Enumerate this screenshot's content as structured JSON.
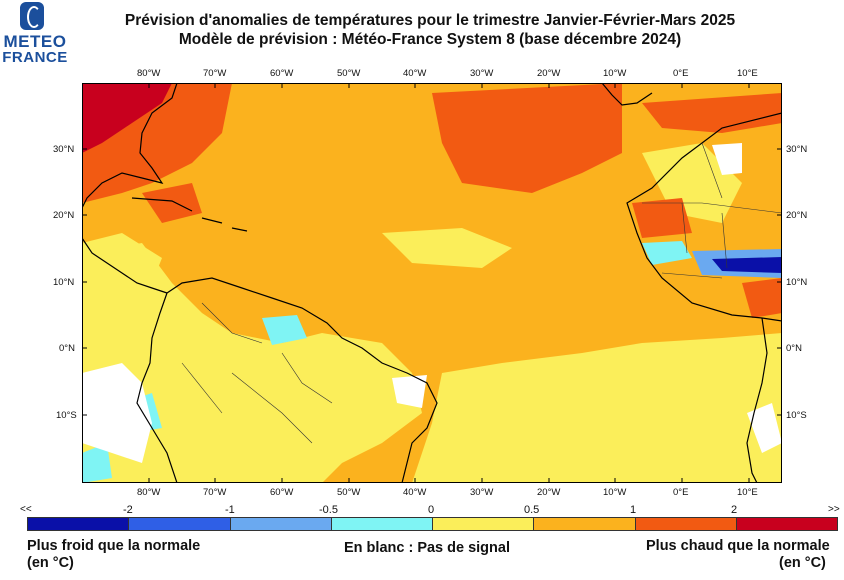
{
  "logo": {
    "line1": "METEO",
    "line2": "FRANCE"
  },
  "title_line1": "Prévision d'anomalies de températures pour le trimestre Janvier-Février-Mars 2025",
  "title_line2": "Modèle de prévision : Météo-France System 8 (base décembre 2024)",
  "lon_labels": [
    "80°W",
    "70°W",
    "60°W",
    "50°W",
    "40°W",
    "30°W",
    "20°W",
    "10°W",
    "0°E",
    "10°E"
  ],
  "lat_labels": [
    "30°N",
    "20°N",
    "10°N",
    "0°N",
    "10°S"
  ],
  "legend": {
    "left_end": "<<",
    "right_end": ">>",
    "breaks": [
      "-2",
      "-1",
      "-0.5",
      "0",
      "0.5",
      "1",
      "2"
    ],
    "colors": [
      "#0a10a8",
      "#2f5fe6",
      "#6aa9f0",
      "#7ff4f4",
      "#fbee5a",
      "#fbb21e",
      "#f25a12",
      "#c8001e"
    ]
  },
  "caption_left_1": "Plus froid que la normale",
  "caption_left_2": "(en °C)",
  "caption_center": "En blanc : Pas de signal",
  "caption_right_1": "Plus chaud que la normale",
  "caption_right_2": "(en °C)",
  "map_colors": {
    "background": "#fbb21e",
    "pale": "#fbee5a",
    "warm": "#f25a12",
    "hot": "#c8001e",
    "cold": "#6aa9f0",
    "very_cold": "#0a10a8",
    "light_cold": "#7ff4f4",
    "no_signal": "#ffffff"
  }
}
